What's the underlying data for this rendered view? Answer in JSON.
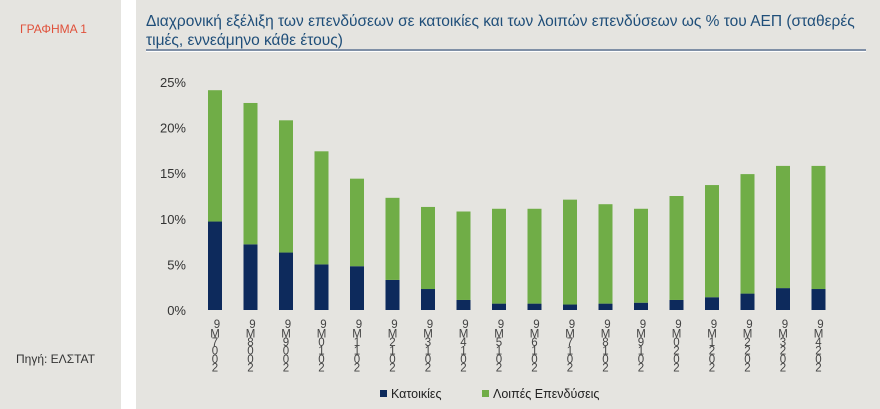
{
  "sidebar": {
    "figure_label": "ΓΡΑΦΗΜΑ 1",
    "source": "Πηγή: ΕΛΣΤΑΤ"
  },
  "chart_data": {
    "type": "bar",
    "stacked": true,
    "title": "Διαχρονική εξέλιξη των επενδύσεων σε κατοικίες και των λοιπών επενδύσεων ως % του ΑΕΠ (σταθερές τιμές, εννεάμηνο κάθε έτους)",
    "categories": [
      "2007M9",
      "2008M9",
      "2009M9",
      "2010M9",
      "2011M9",
      "2012M9",
      "2013M9",
      "2014M9",
      "2015M9",
      "2016M9",
      "2017M9",
      "2018M9",
      "2019M9",
      "2020M9",
      "2021M9",
      "2022M9",
      "2023M9",
      "2024M9"
    ],
    "series": [
      {
        "name": "Κατοικίες",
        "color": "#0d2a5c",
        "values": [
          9.7,
          7.2,
          6.3,
          5.0,
          4.8,
          3.3,
          2.3,
          1.1,
          0.7,
          0.7,
          0.6,
          0.7,
          0.8,
          1.1,
          1.4,
          1.8,
          2.4,
          2.3
        ]
      },
      {
        "name": "Λοιπές Επενδύσεις",
        "color": "#70ad47",
        "values": [
          14.4,
          15.5,
          14.5,
          12.4,
          9.6,
          9.0,
          9.0,
          9.7,
          10.4,
          10.4,
          11.5,
          10.9,
          10.3,
          11.4,
          12.3,
          13.1,
          13.4,
          13.5
        ]
      }
    ],
    "ylim": [
      0,
      25
    ],
    "yticks": [
      "0%",
      "5%",
      "10%",
      "15%",
      "20%",
      "25%"
    ],
    "grid": false,
    "legend": "bottom"
  }
}
